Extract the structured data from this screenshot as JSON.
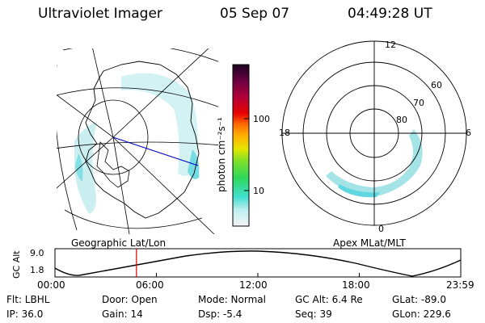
{
  "header": {
    "title": "Ultraviolet Imager",
    "date": "05 Sep 07",
    "time": "04:49:28 UT"
  },
  "map_left": {
    "label": "Geographic Lat/Lon"
  },
  "map_right": {
    "label": "Apex MLat/MLT",
    "mlt_labels": [
      "12",
      "18",
      "6",
      "0"
    ],
    "lat_labels": [
      "60",
      "70",
      "80"
    ]
  },
  "colorbar": {
    "unit": "photon cm⁻²s⁻¹",
    "ticks": [
      "100",
      "10"
    ]
  },
  "altitude_plot": {
    "ylabel": "GC Alt",
    "yticks": [
      "9.0",
      "1.8"
    ],
    "xticks": [
      "00:00",
      "06:00",
      "12:00",
      "18:00",
      "23:59"
    ],
    "current_time_hours": 4.82
  },
  "info": {
    "flt": "Flt: LBHL",
    "ip": "IP: 36.0",
    "door": "Door: Open",
    "gain": "Gain: 14",
    "mode": "Mode: Normal",
    "dsp": "Dsp:    -5.4",
    "gcalt": "GC Alt: 6.4 Re",
    "seq": "Seq: 39",
    "glat": "GLat: -89.0",
    "glon": "GLon: 229.6"
  },
  "colors": {
    "aurora": "#8fdde0",
    "track": "#0000cc",
    "marker": "#dd0000"
  }
}
